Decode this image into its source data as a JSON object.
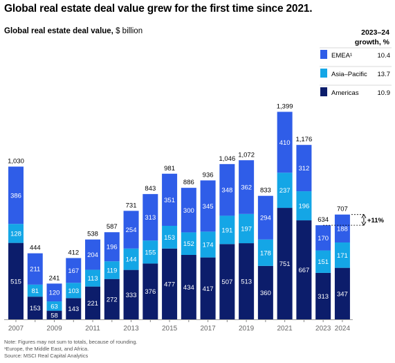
{
  "title": "Global real estate deal value grew for the first time since 2021.",
  "subtitle_bold": "Global real estate deal value,",
  "subtitle_unit": " $ billion",
  "growth_header_line1": "2023–24",
  "growth_header_line2": "growth, %",
  "annotation": "+11%",
  "notes": [
    "Note: Figures may not sum to totals, because of rounding.",
    "¹Europe, the Middle East, and Africa.",
    "Source: MSCI Real Capital Analytics"
  ],
  "colors": {
    "Americas": "#0c1d6b",
    "Asia–Pacific": "#14a6e6",
    "EMEA": "#2f5de8"
  },
  "chart_data": {
    "type": "bar",
    "stacked": true,
    "categories": [
      "2007",
      "2008",
      "2009",
      "2010",
      "2011",
      "2012",
      "2013",
      "2014",
      "2015",
      "2016",
      "2017",
      "2018",
      "2019",
      "2020",
      "2021",
      "2022",
      "2023",
      "2024"
    ],
    "x_tick_labels": [
      "2007",
      "",
      "2009",
      "",
      "2011",
      "",
      "2013",
      "",
      "2015",
      "",
      "2017",
      "",
      "2019",
      "",
      "2021",
      "",
      "2023",
      "2024"
    ],
    "totals": [
      "1,030",
      "444",
      "241",
      "412",
      "538",
      "587",
      "731",
      "843",
      "981",
      "886",
      "936",
      "1,046",
      "1,072",
      "833",
      "1,399",
      "1,176",
      "634",
      "707"
    ],
    "series": [
      {
        "name": "Americas",
        "values": [
          515,
          153,
          58,
          143,
          221,
          272,
          333,
          376,
          477,
          434,
          417,
          507,
          513,
          360,
          751,
          667,
          313,
          347
        ],
        "growth": "10.9"
      },
      {
        "name": "Asia–Pacific",
        "values": [
          128,
          81,
          63,
          103,
          113,
          119,
          144,
          155,
          153,
          152,
          174,
          191,
          197,
          178,
          237,
          196,
          151,
          171
        ],
        "growth": "13.7"
      },
      {
        "name": "EMEA",
        "legend_label": "EMEA¹",
        "values": [
          386,
          211,
          120,
          167,
          204,
          196,
          254,
          313,
          351,
          300,
          345,
          348,
          362,
          294,
          410,
          312,
          170,
          188
        ],
        "growth": "10.4"
      }
    ],
    "legend_order": [
      "EMEA",
      "Asia–Pacific",
      "Americas"
    ],
    "ylim": [
      0,
      1450
    ],
    "grid": false,
    "legend_position": "top-right"
  }
}
